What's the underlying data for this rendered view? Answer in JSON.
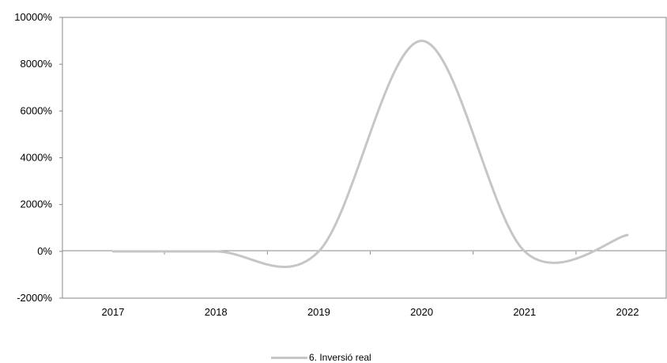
{
  "chart_data": {
    "type": "line",
    "title": "",
    "xlabel": "",
    "ylabel": "",
    "categories": [
      "2017",
      "2018",
      "2019",
      "2020",
      "2021",
      "2022"
    ],
    "x_tick_labels": [
      "2017",
      "2018",
      "2019",
      "2020",
      "2021",
      "2022"
    ],
    "y_tick_labels": [
      "10000%",
      "8000%",
      "6000%",
      "4000%",
      "2000%",
      "0%",
      "-2000%"
    ],
    "ylim": [
      -2000,
      10000
    ],
    "y_unit": "%",
    "grid": false,
    "smoothed": true,
    "legend_position": "bottom-center",
    "series": [
      {
        "name": "6. Inversió real",
        "color": "#c6c6c6",
        "values": [
          0,
          0,
          0,
          9000,
          0,
          700
        ]
      }
    ]
  }
}
